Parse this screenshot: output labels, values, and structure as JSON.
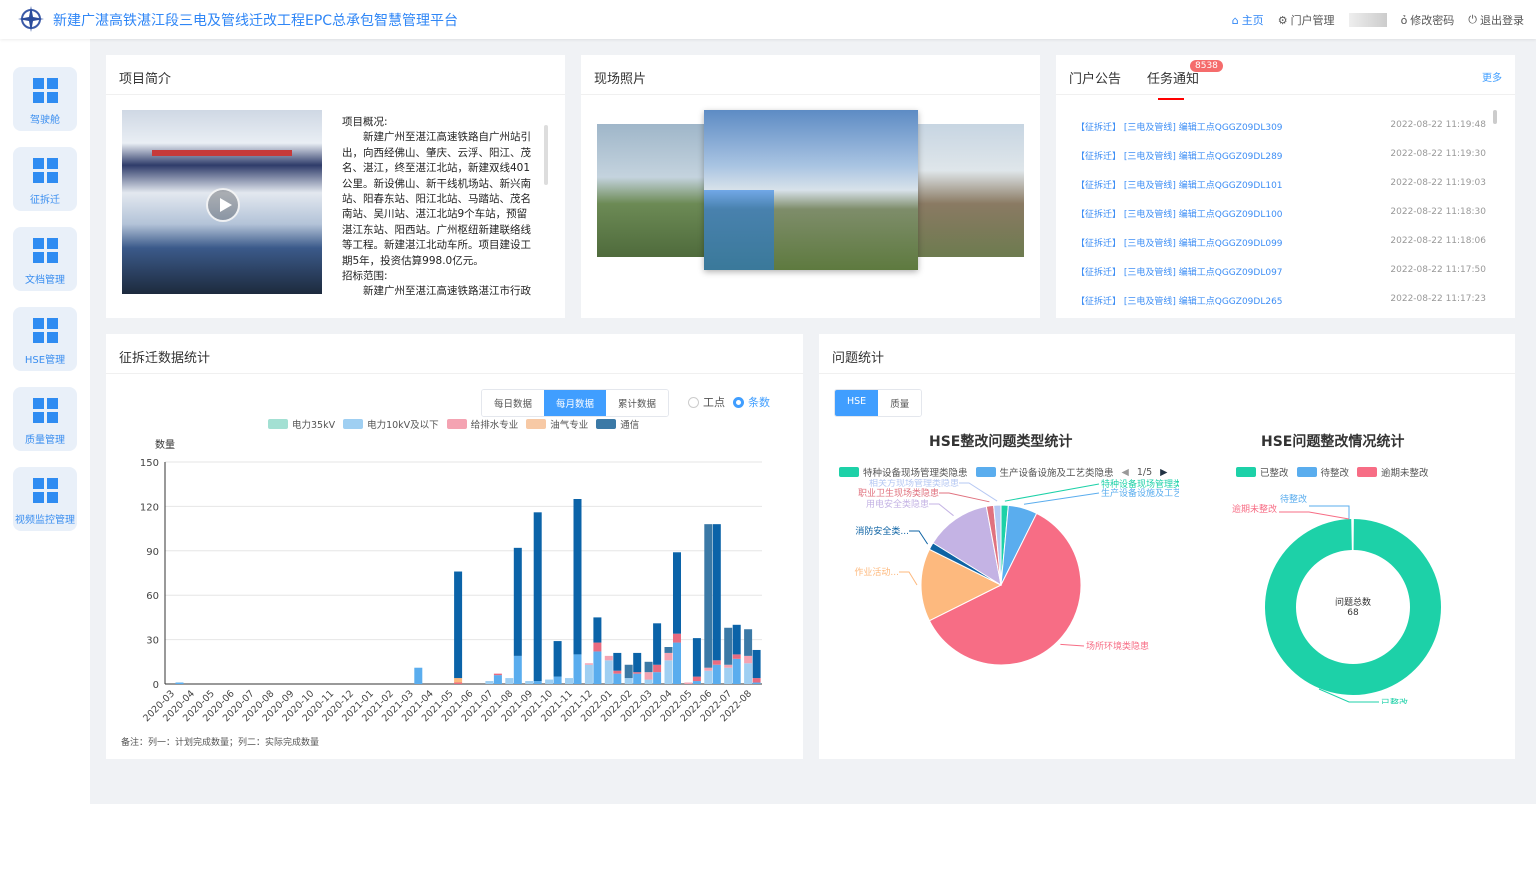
{
  "header": {
    "title": "新建广湛高铁湛江段三电及管线迁改工程EPC总承包智慧管理平台",
    "nav": {
      "home": "主页",
      "portal": "门户管理",
      "password": "修改密码",
      "logout": "退出登录"
    }
  },
  "sidebar": {
    "items": [
      {
        "label": "驾驶舱"
      },
      {
        "label": "征拆迁"
      },
      {
        "label": "文档管理"
      },
      {
        "label": "HSE管理"
      },
      {
        "label": "质量管理"
      },
      {
        "label": "视频监控管理"
      }
    ]
  },
  "intro": {
    "title": "项目简介",
    "heading1": "项目概况:",
    "para1": "新建广州至湛江高速铁路自广州站引出，向西经佛山、肇庆、云浮、阳江、茂名、湛江，终至湛江北站，新建双线401公里。新设佛山、新干线机场站、新兴南站、阳春东站、阳江北站、马踏站、茂名南站、吴川站、湛江北站9个车站，预留湛江东站、阳西站。广州枢纽新建联络线等工程。新建湛江北动车所。项目建设工期5年，投资估算998.0亿元。",
    "heading2": "招标范围:",
    "para2": "新建广州至湛江高速铁路湛江市行政"
  },
  "photos": {
    "title": "现场照片"
  },
  "news": {
    "tabs": [
      "门户公告",
      "任务通知"
    ],
    "badge": "8538",
    "more": "更多",
    "items": [
      {
        "title": "【征拆迁】 [三电及管线] 编辑工点QGGZ09DL309",
        "date": "2022-08-22 11:19:48"
      },
      {
        "title": "【征拆迁】 [三电及管线] 编辑工点QGGZ09DL289",
        "date": "2022-08-22 11:19:30"
      },
      {
        "title": "【征拆迁】 [三电及管线] 编辑工点QGGZ09DL101",
        "date": "2022-08-22 11:19:03"
      },
      {
        "title": "【征拆迁】 [三电及管线] 编辑工点QGGZ09DL100",
        "date": "2022-08-22 11:18:30"
      },
      {
        "title": "【征拆迁】 [三电及管线] 编辑工点QGGZ09DL099",
        "date": "2022-08-22 11:18:06"
      },
      {
        "title": "【征拆迁】 [三电及管线] 编辑工点QGGZ09DL097",
        "date": "2022-08-22 11:17:50"
      },
      {
        "title": "【征拆迁】 [三电及管线] 编辑工点QGGZ09DL265",
        "date": "2022-08-22 11:17:23"
      }
    ]
  },
  "demolition": {
    "title": "征拆迁数据统计",
    "modes": [
      "每日数据",
      "每月数据",
      "累计数据"
    ],
    "active_mode": "每月数据",
    "radios": [
      "工点",
      "条数"
    ],
    "active_radio": "条数",
    "note": "备注：列一：计划完成数量；列二：实际完成数量"
  },
  "issues": {
    "title": "问题统计",
    "tabs": [
      "HSE",
      "质量"
    ],
    "active_tab": "HSE",
    "legend_pager": "1/5"
  },
  "chart_data": [
    {
      "type": "bar",
      "stacked": true,
      "ylabel": "数量",
      "ylim": [
        0,
        150
      ],
      "yticks": [
        0,
        30,
        60,
        90,
        120,
        150
      ],
      "grid": true,
      "legend_placement": "top",
      "categories": [
        "2020-03",
        "2020-04",
        "2020-05",
        "2020-06",
        "2020-07",
        "2020-08",
        "2020-09",
        "2020-10",
        "2020-11",
        "2020-12",
        "2021-01",
        "2021-02",
        "2021-03",
        "2021-04",
        "2021-05",
        "2021-06",
        "2021-07",
        "2021-08",
        "2021-09",
        "2021-10",
        "2021-11",
        "2021-12",
        "2022-01",
        "2022-02",
        "2022-03",
        "2022-04",
        "2022-05",
        "2022-06",
        "2022-07",
        "2022-08"
      ],
      "series": [
        {
          "name": "电力35kV",
          "color": "#a3e0d3",
          "plan": [
            0,
            0,
            0,
            0,
            0,
            0,
            0,
            0,
            0,
            0,
            0,
            0,
            0,
            0,
            0,
            0,
            0,
            0,
            0,
            0,
            0,
            0,
            0,
            0,
            0,
            0,
            0,
            0,
            0,
            0
          ],
          "actual": [
            0,
            0,
            0,
            0,
            0,
            0,
            0,
            0,
            0,
            0,
            0,
            0,
            0,
            0,
            0,
            0,
            0,
            0,
            0,
            0,
            0,
            0,
            0,
            0,
            0,
            0,
            0,
            0,
            0,
            0
          ]
        },
        {
          "name": "电力10kV及以下",
          "color": "#9fcff2",
          "plan": [
            0,
            0,
            0,
            0,
            0,
            0,
            0,
            0,
            0,
            0,
            0,
            0,
            0,
            0,
            0,
            0,
            2,
            4,
            2,
            3,
            4,
            13,
            16,
            4,
            3,
            16,
            0,
            9,
            11,
            14
          ],
          "actual": [
            1,
            0,
            0,
            0,
            0,
            0,
            0,
            0,
            0,
            0,
            0,
            0,
            11,
            0,
            0,
            0,
            6,
            19,
            2,
            5,
            20,
            22,
            7,
            7,
            8,
            28,
            2,
            13,
            17,
            1
          ]
        },
        {
          "name": "给排水专业",
          "color": "#f4a3b2",
          "plan": [
            0,
            0,
            0,
            0,
            0,
            0,
            0,
            0,
            0,
            0,
            0,
            0,
            0,
            0,
            0,
            0,
            0,
            0,
            0,
            0,
            0,
            1,
            3,
            0,
            5,
            5,
            1,
            2,
            2,
            5
          ],
          "actual": [
            0,
            0,
            0,
            0,
            0,
            0,
            0,
            0,
            0,
            0,
            0,
            0,
            0,
            0,
            1,
            0,
            1,
            0,
            0,
            0,
            0,
            6,
            2,
            1,
            5,
            6,
            3,
            3,
            3,
            3
          ]
        },
        {
          "name": "油气专业",
          "color": "#f7c9a5",
          "plan": [
            0,
            0,
            0,
            0,
            0,
            0,
            0,
            0,
            0,
            0,
            0,
            0,
            0,
            0,
            0,
            0,
            0,
            0,
            0,
            0,
            0,
            0,
            0,
            0,
            0,
            0,
            0,
            0,
            0,
            0
          ],
          "actual": [
            0,
            0,
            0,
            0,
            0,
            0,
            0,
            0,
            0,
            0,
            0,
            0,
            0,
            0,
            3,
            0,
            0,
            0,
            0,
            0,
            0,
            0,
            0,
            0,
            0,
            0,
            0,
            0,
            0,
            0
          ]
        },
        {
          "name": "通信",
          "color": "#3b79a6",
          "plan": [
            0,
            0,
            0,
            0,
            0,
            0,
            0,
            0,
            0,
            0,
            0,
            0,
            0,
            0,
            0,
            0,
            0,
            0,
            0,
            0,
            0,
            0,
            0,
            9,
            7,
            4,
            0,
            97,
            25,
            18
          ],
          "actual": [
            0,
            0,
            0,
            0,
            0,
            0,
            0,
            0,
            0,
            0,
            0,
            0,
            0,
            0,
            72,
            0,
            0,
            73,
            114,
            24,
            105,
            17,
            12,
            13,
            28,
            55,
            26,
            92,
            20,
            19
          ]
        }
      ]
    },
    {
      "type": "pie",
      "title": "HSE整改问题类型统计",
      "legend_visible": [
        "特种设备现场管理类隐患",
        "生产设备设施及工艺类隐患"
      ],
      "slices": [
        {
          "name": "特种设备现场管理类隐患",
          "label": "特种设备现场管理类隐患",
          "value": 1,
          "color": "#1dd1a8"
        },
        {
          "name": "生产设备设施及工艺类隐患",
          "label": "生产设备设施及工艺...",
          "value": 4,
          "color": "#5aadee"
        },
        {
          "name": "场所环境类隐患",
          "label": "场所环境类隐患",
          "value": 41,
          "color": "#f76d85"
        },
        {
          "name": "作业活动",
          "label": "作业活动...",
          "value": 10,
          "color": "#fdb97e"
        },
        {
          "name": "消防安全类",
          "label": "消防安全类...",
          "value": 1,
          "color": "#0e63a4"
        },
        {
          "name": "用电安全类隐患",
          "label": "用电安全类隐患",
          "value": 9,
          "color": "#c4b3e4"
        },
        {
          "name": "职业卫生现场类隐患",
          "label": "职业卫生现场类隐患",
          "value": 1,
          "color": "#e0727f"
        },
        {
          "name": "相关方现场管理类隐患",
          "label": "相关方现场管理类隐患",
          "value": 1,
          "color": "#b6c8f3"
        }
      ]
    },
    {
      "type": "pie",
      "donut": true,
      "title": "HSE问题整改情况统计",
      "center_label": "问题总数",
      "total": 68,
      "slices": [
        {
          "name": "已整改",
          "value": 68,
          "color": "#1dd1a8"
        },
        {
          "name": "待整改",
          "value": 0,
          "color": "#5aadee"
        },
        {
          "name": "逾期未整改",
          "value": 0,
          "color": "#f76d85"
        }
      ]
    }
  ]
}
